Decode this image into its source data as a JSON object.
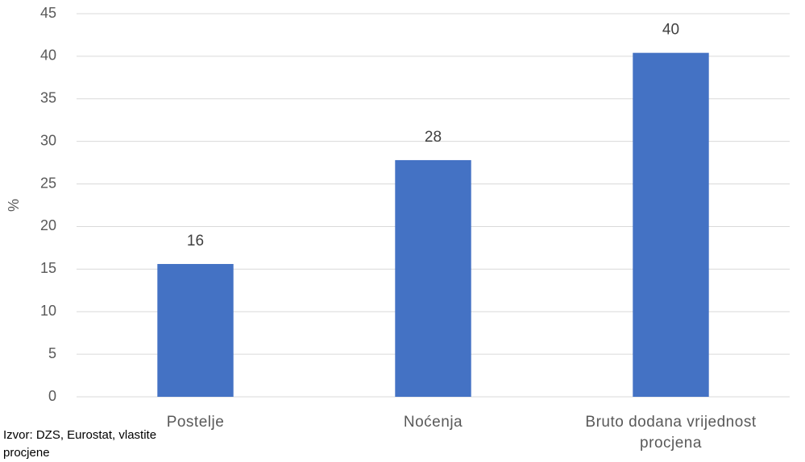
{
  "chart_data": {
    "type": "bar",
    "y_label": "%",
    "categories": [
      "Postelje",
      "Noćenja",
      "Bruto dodana vrijednost procjena"
    ],
    "values": [
      15.6,
      27.8,
      40.4
    ],
    "value_labels": [
      "16",
      "28",
      "40"
    ],
    "color": "#4472c4",
    "ylim": [
      0,
      45
    ],
    "yticks": [
      0,
      5,
      10,
      15,
      20,
      25,
      30,
      35,
      40,
      45
    ],
    "grid": true,
    "source": "Izvor: DZS, Eurostat, vlastite procjene"
  }
}
